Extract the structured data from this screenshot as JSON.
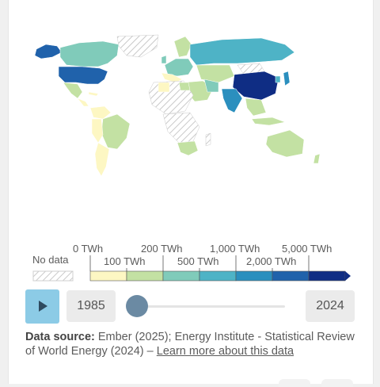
{
  "legend": {
    "no_data_label": "No data",
    "labels_top": [
      "0 TWh",
      "200 TWh",
      "1,000 TWh",
      "5,000 TWh"
    ],
    "labels_bottom": [
      "100 TWh",
      "500 TWh",
      "2,000 TWh"
    ],
    "colors": [
      "#fdf7c3",
      "#c3e1a3",
      "#80cbba",
      "#4eb3c6",
      "#2b8fbe",
      "#2062ab",
      "#0f2d84"
    ]
  },
  "timeline": {
    "start_year": "1985",
    "end_year": "2024",
    "position": 0.0
  },
  "source": {
    "label": "Data source:",
    "text": " Ember (2025); Energy Institute - Statistical Review of World Energy (2024) – ",
    "link": "Learn more about this data"
  },
  "colors": {
    "play_button": "#8ccbe6",
    "no_data_hatch": "#cfcfcf",
    "border": "#cccccc"
  }
}
